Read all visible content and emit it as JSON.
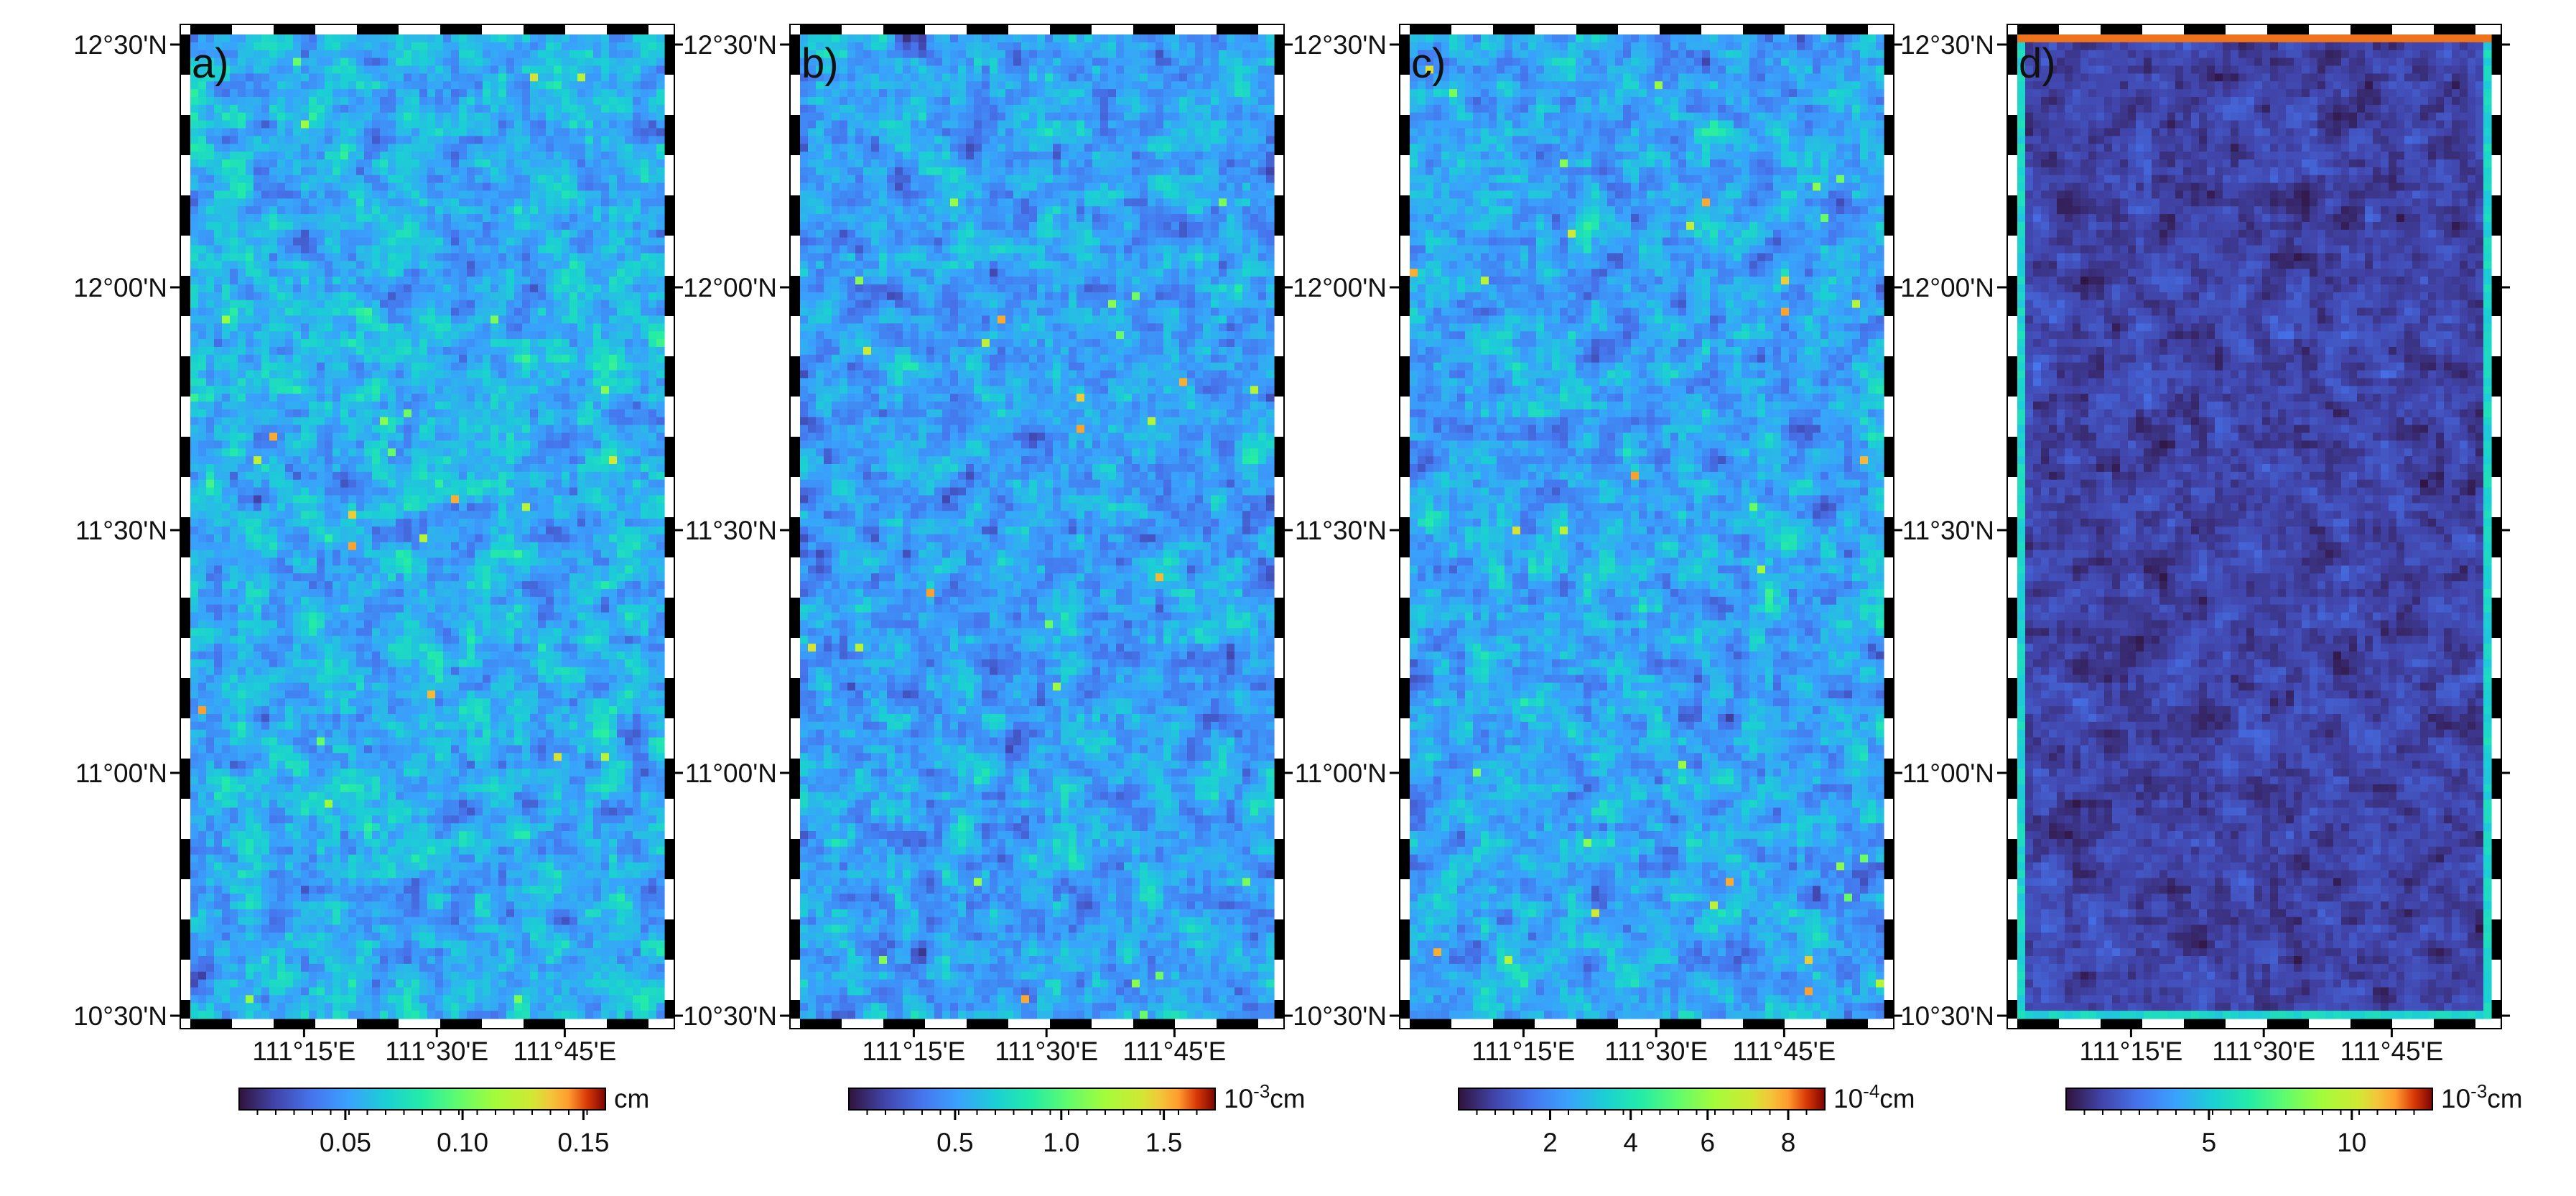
{
  "lat_ticks": [
    "12°30'N",
    "12°00'N",
    "11°30'N",
    "11°00'N",
    "10°30'N"
  ],
  "lon_ticks": [
    "111°15'E",
    "111°30'E",
    "111°45'E"
  ],
  "panels": [
    {
      "label": "a)",
      "colorbar": {
        "ticks": [
          "0.05",
          "0.10",
          "0.15"
        ],
        "unit_base": "cm",
        "unit_exp": ""
      }
    },
    {
      "label": "b)",
      "colorbar": {
        "ticks": [
          "0.5",
          "1.0",
          "1.5"
        ],
        "unit_base": "10",
        "unit_exp": "-3",
        "unit_suffix": "cm"
      }
    },
    {
      "label": "c)",
      "colorbar": {
        "ticks": [
          "2",
          "4",
          "6",
          "8"
        ],
        "unit_base": "10",
        "unit_exp": "-4",
        "unit_suffix": "cm"
      }
    },
    {
      "label": "d)",
      "colorbar": {
        "ticks": [
          "5",
          "10"
        ],
        "unit_base": "10",
        "unit_exp": "-3",
        "unit_suffix": "cm"
      }
    }
  ],
  "colormap": "turbo",
  "colors": {
    "cmap_low": "#30123b",
    "cmap_mid_low": "#4686fb",
    "cmap_mid": "#1be5b5",
    "cmap_mid_high": "#faba39",
    "cmap_high": "#7a0403"
  }
}
